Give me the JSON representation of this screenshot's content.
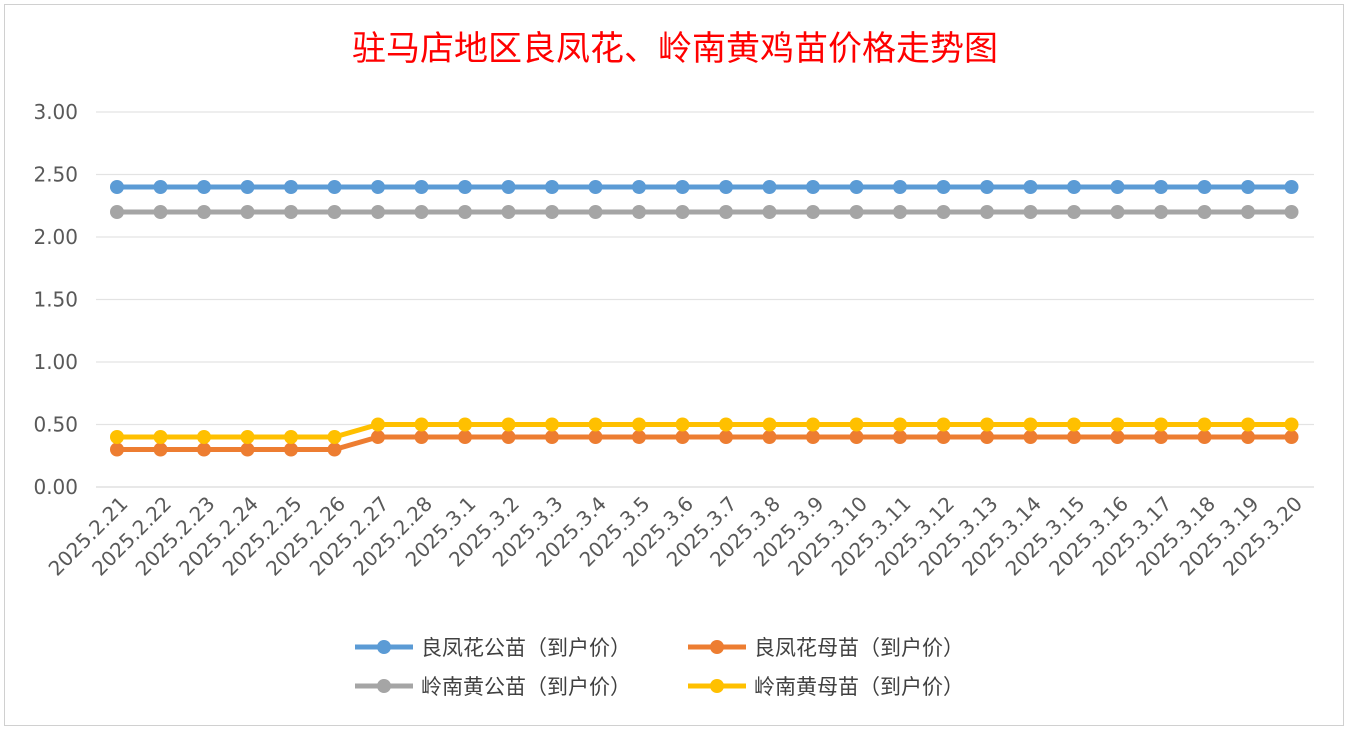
{
  "chart_data": {
    "type": "line",
    "title": "驻马店地区良凤花、岭南黄鸡苗价格走势图",
    "xlabel": "",
    "ylabel": "",
    "ylim": [
      0,
      3
    ],
    "yticks": [
      "0.00",
      "0.50",
      "1.00",
      "1.50",
      "2.00",
      "2.50",
      "3.00"
    ],
    "grid": true,
    "legend_position": "bottom",
    "categories": [
      "2025.2.21",
      "2025.2.22",
      "2025.2.23",
      "2025.2.24",
      "2025.2.25",
      "2025.2.26",
      "2025.2.27",
      "2025.2.28",
      "2025.3.1",
      "2025.3.2",
      "2025.3.3",
      "2025.3.4",
      "2025.3.5",
      "2025.3.6",
      "2025.3.7",
      "2025.3.8",
      "2025.3.9",
      "2025.3.10",
      "2025.3.11",
      "2025.3.12",
      "2025.3.13",
      "2025.3.14",
      "2025.3.15",
      "2025.3.16",
      "2025.3.17",
      "2025.3.18",
      "2025.3.19",
      "2025.3.20"
    ],
    "series": [
      {
        "name": "良凤花公苗（到户价）",
        "color": "#5b9bd5",
        "values": [
          2.4,
          2.4,
          2.4,
          2.4,
          2.4,
          2.4,
          2.4,
          2.4,
          2.4,
          2.4,
          2.4,
          2.4,
          2.4,
          2.4,
          2.4,
          2.4,
          2.4,
          2.4,
          2.4,
          2.4,
          2.4,
          2.4,
          2.4,
          2.4,
          2.4,
          2.4,
          2.4,
          2.4
        ]
      },
      {
        "name": "良凤花母苗（到户价）",
        "color": "#ed7d31",
        "values": [
          0.3,
          0.3,
          0.3,
          0.3,
          0.3,
          0.3,
          0.4,
          0.4,
          0.4,
          0.4,
          0.4,
          0.4,
          0.4,
          0.4,
          0.4,
          0.4,
          0.4,
          0.4,
          0.4,
          0.4,
          0.4,
          0.4,
          0.4,
          0.4,
          0.4,
          0.4,
          0.4,
          0.4
        ]
      },
      {
        "name": "岭南黄公苗（到户价）",
        "color": "#a5a5a5",
        "values": [
          2.2,
          2.2,
          2.2,
          2.2,
          2.2,
          2.2,
          2.2,
          2.2,
          2.2,
          2.2,
          2.2,
          2.2,
          2.2,
          2.2,
          2.2,
          2.2,
          2.2,
          2.2,
          2.2,
          2.2,
          2.2,
          2.2,
          2.2,
          2.2,
          2.2,
          2.2,
          2.2,
          2.2
        ]
      },
      {
        "name": "岭南黄母苗（到户价）",
        "color": "#ffc000",
        "values": [
          0.4,
          0.4,
          0.4,
          0.4,
          0.4,
          0.4,
          0.5,
          0.5,
          0.5,
          0.5,
          0.5,
          0.5,
          0.5,
          0.5,
          0.5,
          0.5,
          0.5,
          0.5,
          0.5,
          0.5,
          0.5,
          0.5,
          0.5,
          0.5,
          0.5,
          0.5,
          0.5,
          0.5
        ]
      }
    ]
  }
}
